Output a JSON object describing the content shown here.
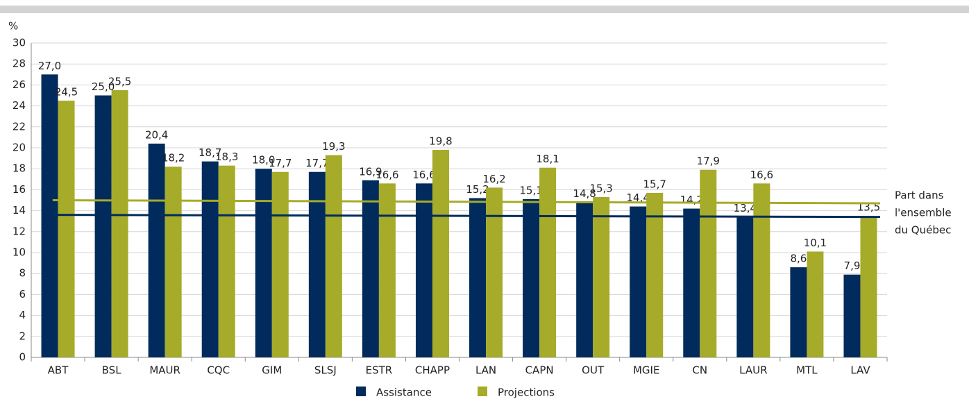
{
  "chart_data": {
    "type": "bar",
    "y_label": "%",
    "categories": [
      "ABT",
      "BSL",
      "MAUR",
      "CQC",
      "GIM",
      "SLSJ",
      "ESTR",
      "CHAPP",
      "LAN",
      "CAPN",
      "OUT",
      "MGIE",
      "CN",
      "LAUR",
      "MTL",
      "LAV"
    ],
    "series": [
      {
        "name": "Assistance",
        "color": "#002b5c",
        "values": [
          27.0,
          25.0,
          20.4,
          18.7,
          18.0,
          17.7,
          16.9,
          16.6,
          15.2,
          15.1,
          14.8,
          14.4,
          14.2,
          13.4,
          8.6,
          7.9
        ],
        "value_labels": [
          "27,0",
          "25,0",
          "20,4",
          "18,7",
          "18,0",
          "17,7",
          "16,9",
          "16,6",
          "15,2",
          "15,1",
          "14,8",
          "14,4",
          "14,2",
          "13,4",
          "8,6",
          "7,9"
        ]
      },
      {
        "name": "Projections",
        "color": "#a6ab2a",
        "values": [
          24.5,
          25.5,
          18.2,
          18.3,
          17.7,
          19.3,
          16.6,
          19.8,
          16.2,
          18.1,
          15.3,
          15.7,
          17.9,
          16.6,
          10.1,
          13.5
        ],
        "value_labels": [
          "24,5",
          "25,5",
          "18,2",
          "18,3",
          "17,7",
          "19,3",
          "16,6",
          "19,8",
          "16,2",
          "18,1",
          "15,3",
          "15,7",
          "17,9",
          "16,6",
          "10,1",
          "13,5"
        ]
      }
    ],
    "reference_lines": [
      {
        "color": "#a6ab2a",
        "values": [
          15.0,
          14.7
        ]
      },
      {
        "color": "#002b5c",
        "values": [
          13.6,
          13.4
        ]
      }
    ],
    "annotation": [
      "Part dans",
      "l'ensemble",
      "du Québec"
    ],
    "ylim": [
      0,
      30
    ],
    "yticks": [
      0,
      2,
      4,
      6,
      8,
      10,
      12,
      14,
      16,
      18,
      20,
      22,
      24,
      26,
      28,
      30
    ],
    "grid": true,
    "legend": "bottom"
  }
}
